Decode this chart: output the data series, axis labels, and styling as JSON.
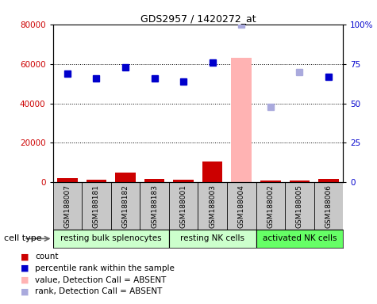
{
  "title": "GDS2957 / 1420272_at",
  "samples": [
    "GSM188007",
    "GSM188181",
    "GSM188182",
    "GSM188183",
    "GSM188001",
    "GSM188003",
    "GSM188004",
    "GSM188002",
    "GSM188005",
    "GSM188006"
  ],
  "groups": [
    {
      "label": "resting bulk splenocytes",
      "start": 0,
      "end": 4
    },
    {
      "label": "resting NK cells",
      "start": 4,
      "end": 7
    },
    {
      "label": "activated NK cells",
      "start": 7,
      "end": 10
    }
  ],
  "group_colors": [
    "#ccffcc",
    "#ccffcc",
    "#66ff66"
  ],
  "count_values": [
    2200,
    1500,
    5000,
    1800,
    1200,
    10500,
    0,
    1000,
    800,
    1800
  ],
  "absent_bar_indices": [
    6
  ],
  "absent_bar_value": 63000,
  "absent_rank_indices": [
    6,
    7,
    8
  ],
  "percentile_values": [
    69,
    66,
    73,
    66,
    64,
    76,
    100,
    48,
    70,
    67
  ],
  "absent_percentile_values": [
    100,
    48,
    70
  ],
  "ylim_left": [
    0,
    80000
  ],
  "ylim_right": [
    0,
    100
  ],
  "yticks_left": [
    0,
    20000,
    40000,
    60000,
    80000
  ],
  "yticks_right": [
    0,
    25,
    50,
    75,
    100
  ],
  "ytick_labels_left": [
    "0",
    "20000",
    "40000",
    "60000",
    "80000"
  ],
  "ytick_labels_right": [
    "0",
    "25",
    "50",
    "75",
    "100%"
  ],
  "count_color": "#cc0000",
  "percentile_color": "#0000cc",
  "absent_bar_color": "#ffb3b3",
  "absent_rank_color": "#aaaadd",
  "sample_bg_color": "#c8c8c8",
  "cell_type_label": "cell type"
}
